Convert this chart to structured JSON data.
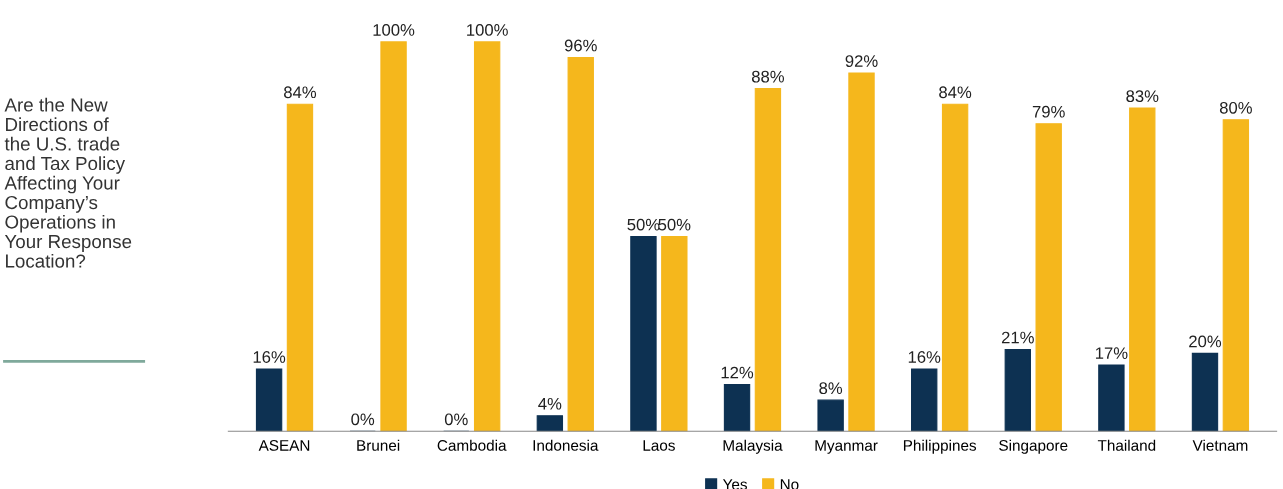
{
  "chart_data": {
    "type": "bar",
    "title": "Are the New Directions of the U.S. trade and Tax Policy Affecting Your Company’s Operations in Your Response Location?",
    "categories": [
      "ASEAN",
      "Brunei",
      "Cambodia",
      "Indonesia",
      "Laos",
      "Malaysia",
      "Myanmar",
      "Philippines",
      "Singapore",
      "Thailand",
      "Vietnam"
    ],
    "series": [
      {
        "name": "Yes",
        "color": "#0d3152",
        "values": [
          16,
          0,
          0,
          4,
          50,
          12,
          8,
          16,
          21,
          17,
          20
        ],
        "value_labels": [
          "16%",
          "0%",
          "0%",
          "4%",
          "50%",
          "12%",
          "8%",
          "16%",
          "21%",
          "17%",
          "20%"
        ]
      },
      {
        "name": "No",
        "color": "#f5b71c",
        "values": [
          84,
          100,
          100,
          96,
          50,
          88,
          92,
          84,
          79,
          83,
          80
        ],
        "value_labels": [
          "84%",
          "100%",
          "100%",
          "96%",
          "50%",
          "88%",
          "92%",
          "84%",
          "79%",
          "83%",
          "80%"
        ]
      }
    ],
    "legend": "bottom",
    "grid": false
  }
}
